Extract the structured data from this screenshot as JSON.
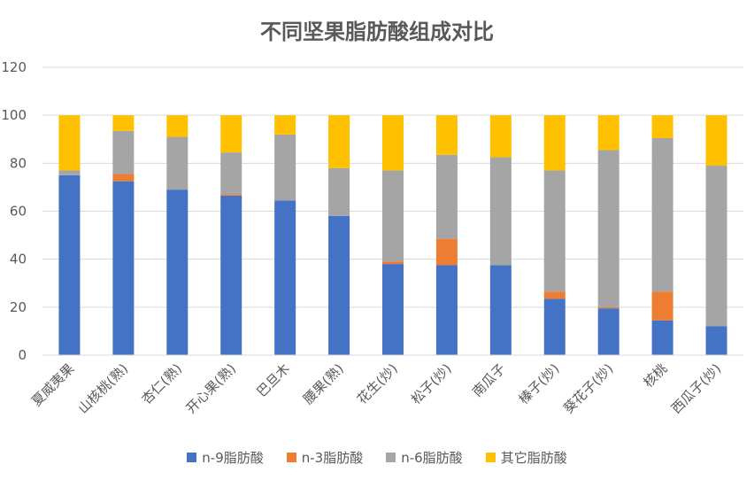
{
  "chart_data": {
    "type": "bar",
    "stacked": true,
    "title": "不同坚果脂肪酸组成对比",
    "categories": [
      "夏威夷果",
      "山核桃(熟)",
      "杏仁(熟)",
      "开心果(熟)",
      "巴旦木",
      "腰果(熟)",
      "花生(炒)",
      "松子(炒)",
      "南瓜子",
      "榛子(炒)",
      "葵花子(炒)",
      "核桃",
      "西瓜子(炒)"
    ],
    "series": [
      {
        "name": "n-9脂肪酸",
        "color": "#4472C4",
        "values": [
          75,
          72.5,
          69,
          66.5,
          64.5,
          58,
          38,
          37.5,
          37.5,
          23.5,
          19.5,
          14.5,
          12
        ]
      },
      {
        "name": "n-3脂肪酸",
        "color": "#ED7D31",
        "values": [
          0,
          3,
          0,
          0.5,
          0,
          0,
          1,
          11,
          0,
          3,
          0.5,
          12,
          0
        ]
      },
      {
        "name": "n-6脂肪酸",
        "color": "#A5A5A5",
        "values": [
          2,
          18,
          22,
          17.5,
          27.5,
          20,
          38,
          35,
          45,
          50.5,
          65.5,
          64,
          67
        ]
      },
      {
        "name": "其它脂肪酸",
        "color": "#FFC000",
        "values": [
          23,
          6.5,
          9,
          15.5,
          8,
          22,
          23,
          16.5,
          17.5,
          23,
          14.5,
          9.5,
          21
        ]
      }
    ],
    "ylim": [
      0,
      120
    ],
    "yticks": [
      0,
      20,
      40,
      60,
      80,
      100,
      120
    ],
    "grid": true,
    "legend_position": "bottom"
  }
}
